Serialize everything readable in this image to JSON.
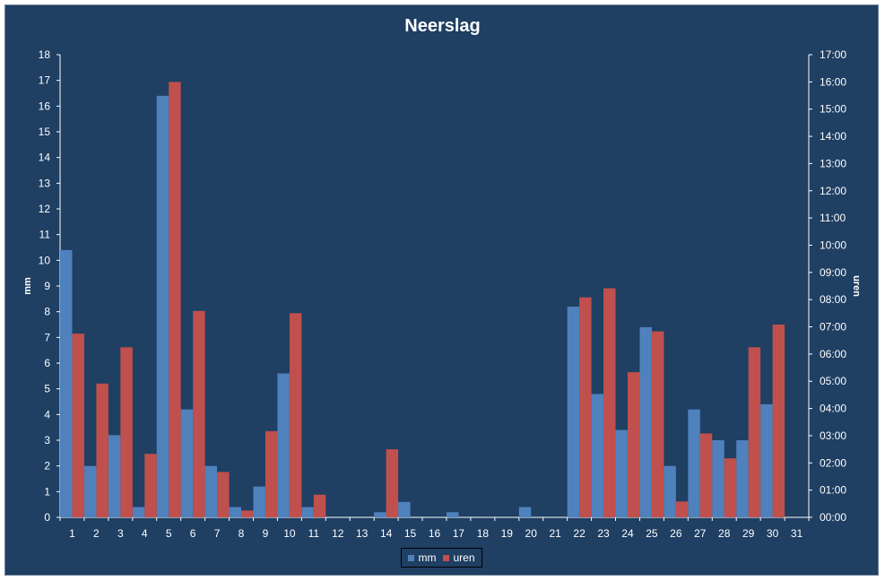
{
  "colors": {
    "background": "#1f3f63",
    "mm": "#4f81bd",
    "uren": "#c0504d",
    "text": "#ffffff"
  },
  "chart_data": {
    "type": "bar",
    "title": "Neerslag",
    "xlabel": "",
    "ylabel": "mm",
    "y2label": "uren",
    "ylim": [
      0,
      18
    ],
    "y2lim_minutes": [
      0,
      1020
    ],
    "yticks": [
      "0",
      "1",
      "2",
      "3",
      "4",
      "5",
      "6",
      "7",
      "8",
      "9",
      "10",
      "11",
      "12",
      "13",
      "14",
      "15",
      "16",
      "17",
      "18"
    ],
    "y2ticks": [
      "00:00",
      "01:00",
      "02:00",
      "03:00",
      "04:00",
      "05:00",
      "06:00",
      "07:00",
      "08:00",
      "09:00",
      "10:00",
      "11:00",
      "12:00",
      "13:00",
      "14:00",
      "15:00",
      "16:00",
      "17:00"
    ],
    "categories": [
      "1",
      "2",
      "3",
      "4",
      "5",
      "6",
      "7",
      "8",
      "9",
      "10",
      "11",
      "12",
      "13",
      "14",
      "15",
      "16",
      "17",
      "18",
      "19",
      "20",
      "21",
      "22",
      "23",
      "24",
      "25",
      "26",
      "27",
      "28",
      "29",
      "30",
      "31"
    ],
    "series": [
      {
        "name": "mm",
        "axis": "left",
        "values": [
          10.4,
          2.0,
          3.2,
          0.4,
          16.4,
          4.2,
          2.0,
          0.4,
          1.2,
          5.6,
          0.4,
          0,
          0,
          0.2,
          0.6,
          0,
          0.2,
          0,
          0,
          0.4,
          0,
          8.2,
          4.8,
          3.4,
          7.4,
          2.0,
          4.2,
          3.0,
          3.0,
          4.4,
          0
        ]
      },
      {
        "name": "uren",
        "axis": "right",
        "values": [
          "06:45",
          "04:55",
          "06:15",
          "02:20",
          "16:00",
          "07:35",
          "01:40",
          "00:15",
          "03:10",
          "07:30",
          "00:50",
          "00:00",
          "00:00",
          "02:30",
          "00:00",
          "00:00",
          "00:00",
          "00:00",
          "00:00",
          "00:00",
          "00:00",
          "08:05",
          "08:25",
          "05:20",
          "06:50",
          "00:35",
          "03:05",
          "02:10",
          "06:15",
          "07:05",
          "00:00"
        ]
      }
    ],
    "legend_position": "bottom",
    "grid": false
  }
}
